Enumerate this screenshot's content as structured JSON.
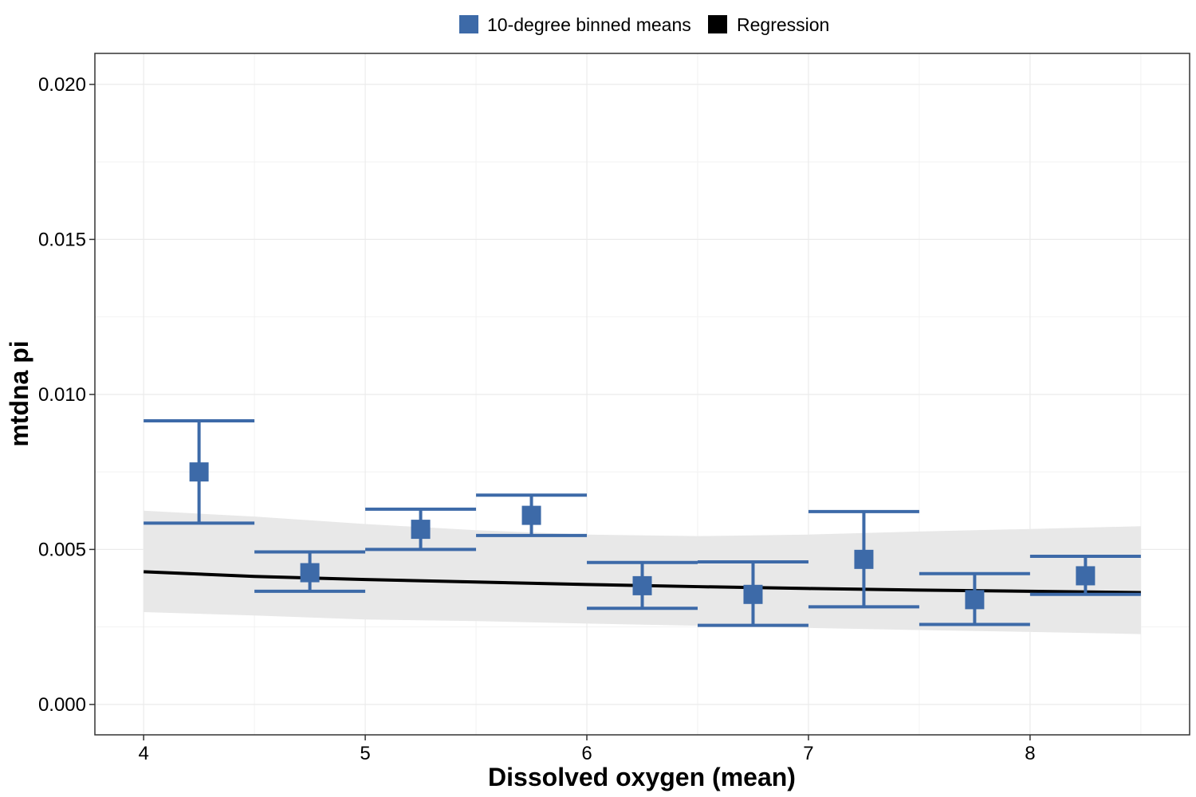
{
  "chart_data": {
    "type": "scatter",
    "xlabel": "Dissolved oxygen (mean)",
    "ylabel": "mtdna pi",
    "xlim": [
      3.78,
      8.72
    ],
    "ylim": [
      -0.00098,
      0.021
    ],
    "x_ticks": [
      4,
      5,
      6,
      7,
      8
    ],
    "x_tick_labels": [
      "4",
      "5",
      "6",
      "7",
      "8"
    ],
    "y_ticks": [
      0.0,
      0.005,
      0.01,
      0.015,
      0.02
    ],
    "y_tick_labels": [
      "0.000",
      "0.005",
      "0.010",
      "0.015",
      "0.020"
    ],
    "grid": true,
    "legend_position": "top",
    "legend": [
      {
        "label": "10-degree binned means",
        "color": "#3d6aa8",
        "shape": "square"
      },
      {
        "label": "Regression",
        "color": "#000000",
        "shape": "square"
      }
    ],
    "series": [
      {
        "name": "10-degree binned means",
        "type": "points_with_errorbars",
        "color": "#3d6aa8",
        "x": [
          4.25,
          4.75,
          5.25,
          5.75,
          6.25,
          6.75,
          7.25,
          7.75,
          8.25
        ],
        "y": [
          0.0075,
          0.00425,
          0.00565,
          0.0061,
          0.00383,
          0.00355,
          0.00468,
          0.00338,
          0.00415
        ],
        "ymin": [
          0.00585,
          0.00365,
          0.005,
          0.00545,
          0.0031,
          0.00255,
          0.00315,
          0.00258,
          0.00355
        ],
        "ymax": [
          0.00915,
          0.00492,
          0.0063,
          0.00675,
          0.00458,
          0.0046,
          0.00622,
          0.00422,
          0.00478
        ],
        "bin_xmin": [
          4.0,
          4.5,
          5.0,
          5.5,
          6.0,
          6.5,
          7.0,
          7.5,
          8.0
        ],
        "bin_xmax": [
          4.5,
          5.0,
          5.5,
          6.0,
          6.5,
          7.0,
          7.5,
          8.0,
          8.5
        ]
      },
      {
        "name": "Regression",
        "type": "line_with_ribbon",
        "color": "#000000",
        "ribbon_color": "#e8e8e8",
        "x": [
          4.0,
          4.5,
          5.0,
          5.5,
          6.0,
          6.5,
          7.0,
          7.5,
          8.0,
          8.5
        ],
        "y": [
          0.00428,
          0.00413,
          0.00403,
          0.00395,
          0.00387,
          0.0038,
          0.00374,
          0.00369,
          0.00365,
          0.00361
        ],
        "ymin": [
          0.00298,
          0.00287,
          0.00274,
          0.00269,
          0.00261,
          0.00254,
          0.00247,
          0.0024,
          0.00234,
          0.00227
        ],
        "ymax": [
          0.00625,
          0.00606,
          0.00582,
          0.00562,
          0.00548,
          0.00543,
          0.00548,
          0.00558,
          0.00566,
          0.00575
        ]
      }
    ]
  }
}
